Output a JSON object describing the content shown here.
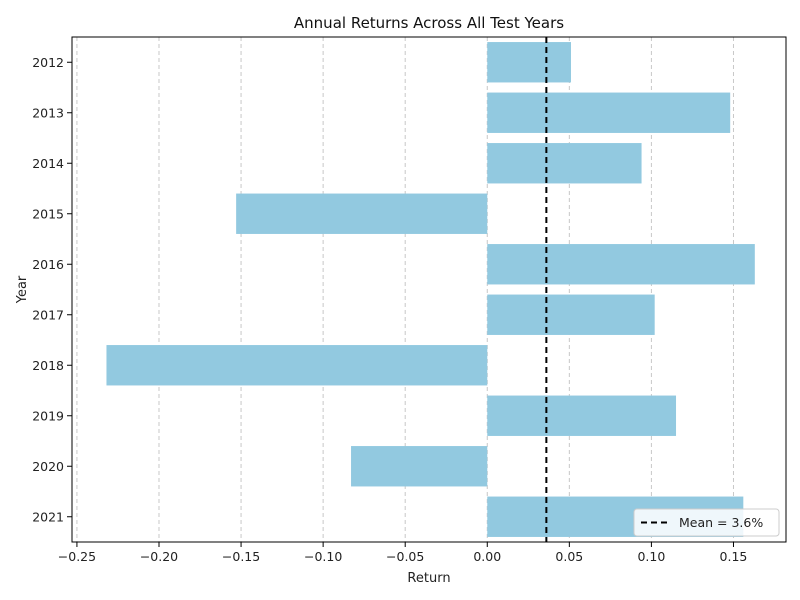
{
  "chart_data": {
    "type": "bar",
    "orientation": "horizontal",
    "title": "Annual Returns Across All Test Years",
    "xlabel": "Return",
    "ylabel": "Year",
    "categories": [
      "2012",
      "2013",
      "2014",
      "2015",
      "2016",
      "2017",
      "2018",
      "2019",
      "2020",
      "2021"
    ],
    "values": [
      0.051,
      0.148,
      0.094,
      -0.153,
      0.163,
      0.102,
      -0.232,
      0.115,
      -0.083,
      0.156
    ],
    "xlim": [
      -0.253,
      0.182
    ],
    "xticks": [
      -0.25,
      -0.2,
      -0.15,
      -0.1,
      -0.05,
      0.0,
      0.05,
      0.1,
      0.15
    ],
    "xtick_labels": [
      "−0.25",
      "−0.20",
      "−0.15",
      "−0.10",
      "−0.05",
      "0.00",
      "0.05",
      "0.10",
      "0.15"
    ],
    "grid": "x-dashed",
    "bar_color": "#92c9e0",
    "mean_line": {
      "value": 0.036,
      "label": "Mean = 3.6%",
      "color": "#000000",
      "style": "dashed"
    },
    "legend": {
      "placement": "lower-right",
      "entries": [
        "Mean = 3.6%"
      ]
    }
  }
}
